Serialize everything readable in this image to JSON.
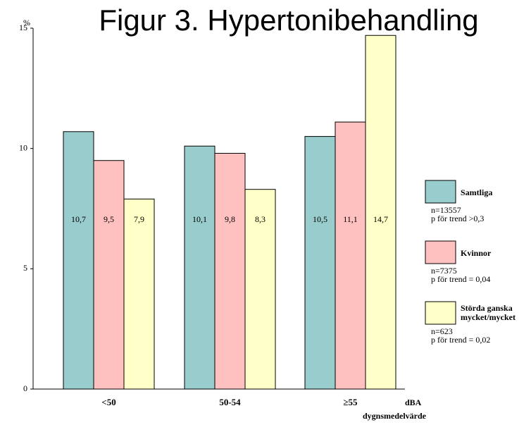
{
  "chart_data": {
    "type": "bar",
    "title": "Figur 3. Hypertonibehandling",
    "y_unit": "%",
    "x_label": [
      "dBA",
      "dygnsmedelvärde"
    ],
    "categories": [
      "<50",
      "50-54",
      "≥55"
    ],
    "ylim": [
      0,
      15
    ],
    "yticks": [
      0,
      5,
      10,
      15
    ],
    "series": [
      {
        "name": "Samtliga",
        "color": "#99cccc",
        "values": [
          10.7,
          10.1,
          10.5
        ],
        "value_labels": [
          "10,7",
          "10,1",
          "10,5"
        ],
        "note": [
          "n=13557",
          "p för trend >0,3"
        ]
      },
      {
        "name": "Kvinnor",
        "color": "#ffc0c0",
        "values": [
          9.5,
          9.8,
          11.1
        ],
        "value_labels": [
          "9,5",
          "9,8",
          "11,1"
        ],
        "note": [
          "n=7375",
          "p för trend =  0,04"
        ]
      },
      {
        "name": "Störda ganska mycket/mycket",
        "color": "#ffffc8",
        "values": [
          7.9,
          8.3,
          14.7
        ],
        "value_labels": [
          "7,9",
          "8,3",
          "14,7"
        ],
        "note": [
          "n=623",
          "p för trend = 0,02"
        ]
      }
    ]
  }
}
